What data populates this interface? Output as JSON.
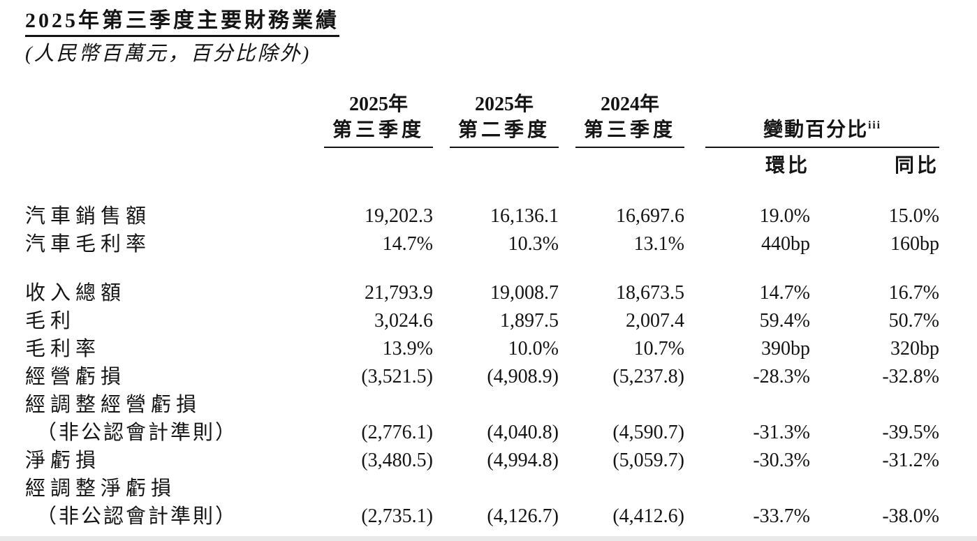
{
  "page": {
    "title": "2025年第三季度主要財務業績",
    "subtitle": "(人民幣百萬元，百分比除外)"
  },
  "table": {
    "period_headers": [
      {
        "line1": "2025年",
        "line2": "第三季度"
      },
      {
        "line1": "2025年",
        "line2": "第二季度"
      },
      {
        "line1": "2024年",
        "line2": "第三季度"
      }
    ],
    "change_header": {
      "text": "變動百分比",
      "note": "iii"
    },
    "change_subheaders": {
      "qoq": "環比",
      "yoy": "同比"
    },
    "rows": [
      {
        "label": "汽車銷售額",
        "values": [
          "19,202.3",
          "16,136.1",
          "16,697.6",
          "19.0%",
          "15.0%"
        ]
      },
      {
        "label": "汽車毛利率",
        "values": [
          "14.7%",
          "10.3%",
          "13.1%",
          "440bp",
          "160bp"
        ]
      },
      {
        "label": "收入總額",
        "values": [
          "21,793.9",
          "19,008.7",
          "18,673.5",
          "14.7%",
          "16.7%"
        ]
      },
      {
        "label": "毛利",
        "values": [
          "3,024.6",
          "1,897.5",
          "2,007.4",
          "59.4%",
          "50.7%"
        ]
      },
      {
        "label": "毛利率",
        "values": [
          "13.9%",
          "10.0%",
          "10.7%",
          "390bp",
          "320bp"
        ]
      },
      {
        "label": "經營虧損",
        "values": [
          "(3,521.5)",
          "(4,908.9)",
          "(5,237.8)",
          "-28.3%",
          "-32.8%"
        ]
      },
      {
        "label": "經調整經營虧損",
        "label2": "（非公認會計準則）",
        "values": [
          "(2,776.1)",
          "(4,040.8)",
          "(4,590.7)",
          "-31.3%",
          "-39.5%"
        ]
      },
      {
        "label": "淨虧損",
        "values": [
          "(3,480.5)",
          "(4,994.8)",
          "(5,059.7)",
          "-30.3%",
          "-31.2%"
        ]
      },
      {
        "label": "經調整淨虧損",
        "label2": "（非公認會計準則）",
        "values": [
          "(2,735.1)",
          "(4,126.7)",
          "(4,412.6)",
          "-33.7%",
          "-38.0%"
        ]
      }
    ]
  }
}
